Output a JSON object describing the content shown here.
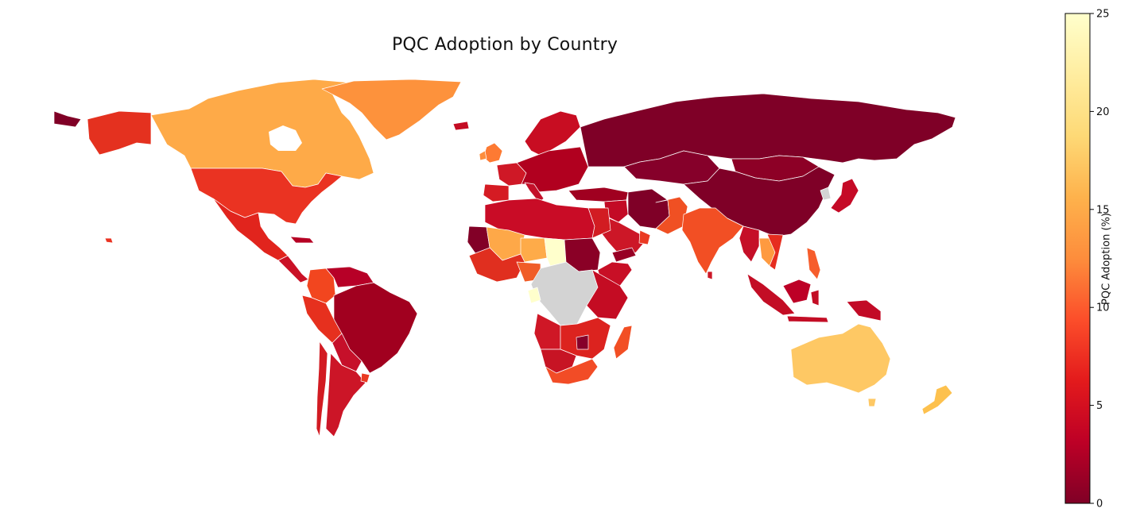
{
  "title": "PQC Adoption by Country",
  "colorbar": {
    "label": "PQC Adoption (%)",
    "min": 0,
    "max": 25,
    "ticks": [
      "0",
      "5",
      "10",
      "15",
      "20",
      "25"
    ],
    "colormap": "YlOrRd_r",
    "stops": [
      "#800026",
      "#bd0026",
      "#e31a1c",
      "#fc4e2a",
      "#fd8d3c",
      "#feb24c",
      "#fed976",
      "#ffeda0",
      "#ffffcc"
    ]
  },
  "no_data_color": "#d3d3d3",
  "map_data": {
    "type": "choropleth",
    "projection": "plate-carree",
    "countries": [
      {
        "name": "Canada",
        "value": 16
      },
      {
        "name": "Greenland",
        "value": 14
      },
      {
        "name": "United States",
        "value": 7
      },
      {
        "name": "Alaska",
        "value": 7
      },
      {
        "name": "Mexico",
        "value": 5
      },
      {
        "name": "Brazil",
        "value": 1.5
      },
      {
        "name": "Colombia",
        "value": 9
      },
      {
        "name": "Peru",
        "value": 7
      },
      {
        "name": "Argentina",
        "value": 3
      },
      {
        "name": "Chile",
        "value": 4
      },
      {
        "name": "Russia",
        "value": 0.5
      },
      {
        "name": "China",
        "value": 0.5
      },
      {
        "name": "Mongolia",
        "value": 1
      },
      {
        "name": "India",
        "value": 8
      },
      {
        "name": "Australia",
        "value": 18
      },
      {
        "name": "New Zealand",
        "value": 16
      },
      {
        "name": "Japan",
        "value": 3
      },
      {
        "name": "Indonesia",
        "value": 3
      },
      {
        "name": "Philippines",
        "value": 10
      },
      {
        "name": "Iran",
        "value": 0.5
      },
      {
        "name": "Saudi Arabia",
        "value": 5
      },
      {
        "name": "Mali",
        "value": 15
      },
      {
        "name": "Niger",
        "value": 16
      },
      {
        "name": "Chad",
        "value": 25
      },
      {
        "name": "Sudan",
        "value": 1
      },
      {
        "name": "Mauritania",
        "value": 0.5
      },
      {
        "name": "DR Congo",
        "value": null
      },
      {
        "name": "South Africa",
        "value": 8
      },
      {
        "name": "Madagascar",
        "value": 9
      },
      {
        "name": "United Kingdom",
        "value": 11
      },
      {
        "name": "Kazakhstan",
        "value": 1
      }
    ]
  }
}
